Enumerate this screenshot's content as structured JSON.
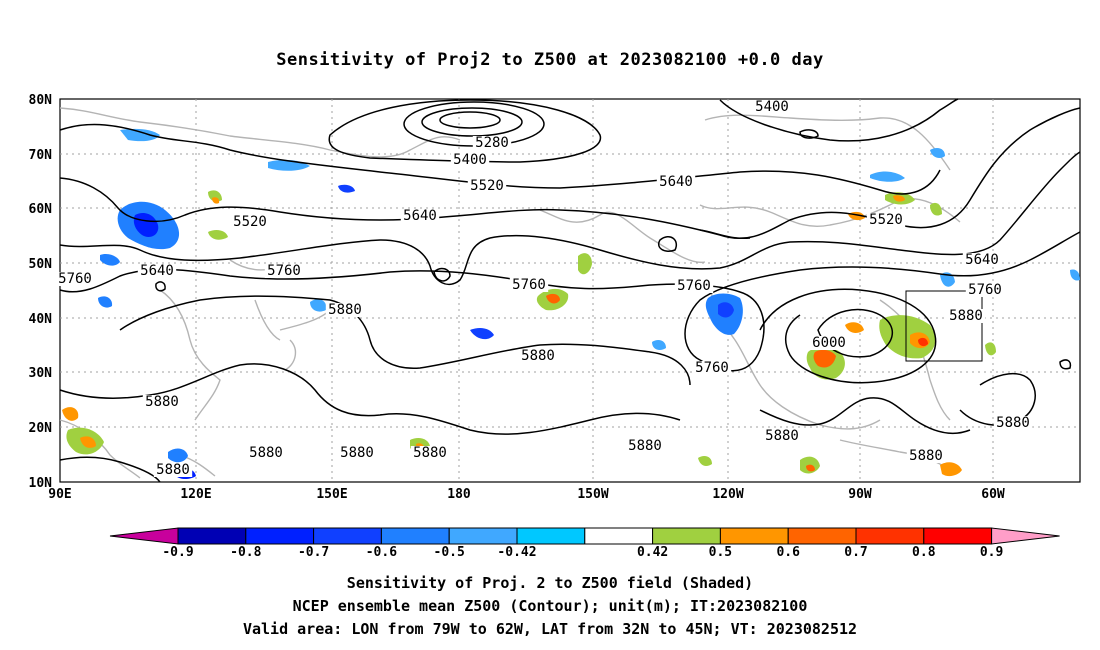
{
  "title": "Sensitivity of Proj2 to Z500 at 2023082100 +0.0 day",
  "lat_labels": [
    "80N",
    "70N",
    "60N",
    "50N",
    "40N",
    "30N",
    "20N",
    "10N"
  ],
  "lon_labels": [
    "90E",
    "120E",
    "150E",
    "180",
    "150W",
    "120W",
    "90W",
    "60W"
  ],
  "contour_labels": [
    {
      "text": "5400",
      "role": "upper-right"
    },
    {
      "text": "5280",
      "role": "closed-low"
    },
    {
      "text": "5400",
      "role": "around-low"
    },
    {
      "text": "5520",
      "role": "pacific"
    },
    {
      "text": "5640",
      "role": "canada"
    },
    {
      "text": "5520",
      "role": "hudson"
    },
    {
      "text": "5520",
      "role": "siberia"
    },
    {
      "text": "5640",
      "role": "pacific"
    },
    {
      "text": "5640",
      "role": "china"
    },
    {
      "text": "5760",
      "role": "china"
    },
    {
      "text": "5760",
      "role": "west-edge"
    },
    {
      "text": "5760",
      "role": "pacific"
    },
    {
      "text": "5760",
      "role": "us-west"
    },
    {
      "text": "5640",
      "role": "atlantic"
    },
    {
      "text": "5760",
      "role": "atlantic"
    },
    {
      "text": "5880",
      "role": "japan"
    },
    {
      "text": "5880",
      "role": "pacific"
    },
    {
      "text": "5880",
      "role": "atlantic"
    },
    {
      "text": "6000",
      "role": "us-high"
    },
    {
      "text": "5760",
      "role": "mexico"
    },
    {
      "text": "5880",
      "role": "south-asia"
    },
    {
      "text": "5880",
      "role": "sw"
    },
    {
      "text": "5880",
      "role": "tropical-1"
    },
    {
      "text": "5880",
      "role": "tropical-2"
    },
    {
      "text": "5880",
      "role": "tropical-3"
    },
    {
      "text": "5880",
      "role": "tropical-4"
    },
    {
      "text": "5880",
      "role": "caribbean"
    },
    {
      "text": "5880",
      "role": "caribbean-2"
    },
    {
      "text": "5880",
      "role": "east"
    }
  ],
  "colorbar": {
    "labels": [
      "-0.9",
      "-0.8",
      "-0.7",
      "-0.6",
      "-0.5",
      "-0.42",
      "0.42",
      "0.5",
      "0.6",
      "0.7",
      "0.8",
      "0.9"
    ],
    "colors": [
      "#0000b4",
      "#0020ff",
      "#1040ff",
      "#2080ff",
      "#40a8ff",
      "#00c8ff",
      "#ffffff",
      "#a0d040",
      "#ff9600",
      "#ff6400",
      "#ff3200",
      "#ff0000"
    ],
    "low_end_color": "#c8009c",
    "high_end_color": "#ff9ec8"
  },
  "captions": {
    "line1": "Sensitivity of Proj. 2 to Z500 field (Shaded)",
    "line2": "NCEP ensemble mean Z500 (Contour); unit(m); IT:2023082100",
    "line3": "Valid area: LON from 79W to 62W, LAT from 32N to 45N; VT: 2023082512"
  },
  "valid_area": {
    "lon_min": -79,
    "lon_max": -62,
    "lat_min": 32,
    "lat_max": 45
  }
}
